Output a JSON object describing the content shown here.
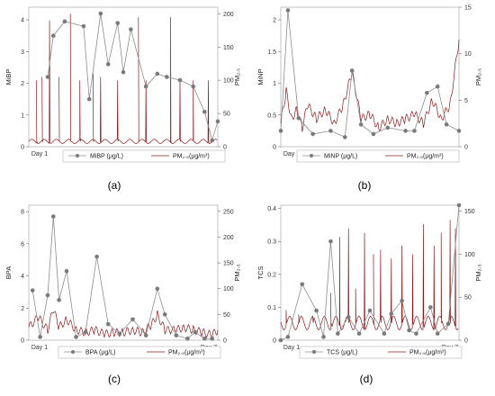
{
  "chart_data": [
    {
      "type": "line",
      "panel_label": "(a)",
      "x_ticks": [
        "Day 1",
        "Day 7"
      ],
      "ylabel_left": "MiBP",
      "ylabel_right": "PM₂.₅",
      "ylim_left": [
        0,
        4.4
      ],
      "yticks_left": [
        0,
        1,
        2,
        3,
        4
      ],
      "ylim_right": [
        0,
        210
      ],
      "yticks_right": [
        0,
        50,
        100,
        150,
        200
      ],
      "legend": [
        "MiBP (μg/L)",
        "PM₂.₅(μg/m³)"
      ],
      "series": [
        {
          "name": "MiBP (μg/L)",
          "axis": "left",
          "style": "connected-markers",
          "points": [
            [
              0.1,
              2.2
            ],
            [
              0.13,
              3.5
            ],
            [
              0.19,
              3.95
            ],
            [
              0.29,
              3.8
            ],
            [
              0.32,
              1.5
            ],
            [
              0.38,
              4.2
            ],
            [
              0.42,
              2.6
            ],
            [
              0.47,
              3.9
            ],
            [
              0.5,
              2.35
            ],
            [
              0.54,
              3.7
            ],
            [
              0.62,
              1.9
            ],
            [
              0.68,
              2.3
            ],
            [
              0.73,
              2.2
            ],
            [
              0.8,
              2.1
            ],
            [
              0.87,
              1.9
            ],
            [
              0.93,
              1.1
            ],
            [
              0.97,
              0.2
            ],
            [
              1.0,
              0.8
            ]
          ]
        },
        {
          "name": "PM₂.₅(μg/m³)",
          "axis": "right",
          "style": "spiky-line",
          "baseline": 8,
          "spikes": [
            [
              0.04,
              100
            ],
            [
              0.07,
              105
            ],
            [
              0.11,
              190
            ],
            [
              0.16,
              105
            ],
            [
              0.22,
              200
            ],
            [
              0.27,
              100
            ],
            [
              0.34,
              110
            ],
            [
              0.38,
              105
            ],
            [
              0.47,
              100
            ],
            [
              0.58,
              195
            ],
            [
              0.62,
              100
            ],
            [
              0.75,
              195
            ],
            [
              0.8,
              100
            ],
            [
              0.87,
              100
            ],
            [
              0.95,
              100
            ]
          ]
        }
      ]
    },
    {
      "type": "line",
      "panel_label": "(b)",
      "x_ticks": [
        "Day 1",
        "Day 7"
      ],
      "ylabel_left": "MiNP",
      "ylabel_right": "PM₂.₅",
      "ylim_left": [
        0,
        2.2
      ],
      "yticks_left": [
        0,
        0.5,
        1,
        1.5,
        2
      ],
      "ylim_right": [
        0,
        15
      ],
      "yticks_right": [
        0,
        5,
        10,
        15
      ],
      "legend": [
        "MiNP (μg/L)",
        "PM₂.₅(μg/m³)"
      ],
      "series": [
        {
          "name": "MiNP (μg/L)",
          "axis": "left",
          "style": "connected-markers",
          "points": [
            [
              0.0,
              0.25
            ],
            [
              0.04,
              2.15
            ],
            [
              0.1,
              0.45
            ],
            [
              0.18,
              0.2
            ],
            [
              0.28,
              0.25
            ],
            [
              0.36,
              0.15
            ],
            [
              0.4,
              1.2
            ],
            [
              0.45,
              0.35
            ],
            [
              0.52,
              0.2
            ],
            [
              0.6,
              0.3
            ],
            [
              0.7,
              0.25
            ],
            [
              0.75,
              0.25
            ],
            [
              0.82,
              0.85
            ],
            [
              0.88,
              0.95
            ],
            [
              0.93,
              0.35
            ],
            [
              1.0,
              0.25
            ]
          ]
        },
        {
          "name": "PM₂.₅(μg/m³)",
          "axis": "right",
          "style": "noisy-line",
          "points": [
            [
              0.0,
              2.5
            ],
            [
              0.03,
              6
            ],
            [
              0.06,
              3
            ],
            [
              0.09,
              4
            ],
            [
              0.12,
              2
            ],
            [
              0.15,
              4.5
            ],
            [
              0.2,
              3
            ],
            [
              0.25,
              4
            ],
            [
              0.3,
              2.5
            ],
            [
              0.35,
              4.5
            ],
            [
              0.4,
              8
            ],
            [
              0.45,
              3
            ],
            [
              0.5,
              3.5
            ],
            [
              0.55,
              2
            ],
            [
              0.6,
              3
            ],
            [
              0.65,
              2.5
            ],
            [
              0.7,
              3
            ],
            [
              0.75,
              3.5
            ],
            [
              0.8,
              2.5
            ],
            [
              0.85,
              5
            ],
            [
              0.9,
              3
            ],
            [
              0.95,
              4.5
            ],
            [
              1.0,
              11.5
            ]
          ]
        }
      ]
    },
    {
      "type": "line",
      "panel_label": "(c)",
      "x_ticks": [
        "Day 1",
        "Day 7"
      ],
      "ylabel_left": "BPA",
      "ylabel_right": "PM₂.₅",
      "ylim_left": [
        0,
        8.4
      ],
      "yticks_left": [
        0,
        2,
        4,
        6,
        8
      ],
      "ylim_right": [
        0,
        262
      ],
      "yticks_right": [
        0,
        50,
        100,
        150,
        200,
        250
      ],
      "legend": [
        "BPA (μg/L)",
        "PM₂.₅(μg/m³)"
      ],
      "series": [
        {
          "name": "BPA (μg/L)",
          "axis": "left",
          "style": "connected-markers",
          "points": [
            [
              0.02,
              3.1
            ],
            [
              0.06,
              0.2
            ],
            [
              0.1,
              2.8
            ],
            [
              0.13,
              7.7
            ],
            [
              0.16,
              2.5
            ],
            [
              0.2,
              4.3
            ],
            [
              0.25,
              0.2
            ],
            [
              0.3,
              0.5
            ],
            [
              0.36,
              5.2
            ],
            [
              0.42,
              1.0
            ],
            [
              0.48,
              0.4
            ],
            [
              0.55,
              1.3
            ],
            [
              0.62,
              0.3
            ],
            [
              0.68,
              3.2
            ],
            [
              0.72,
              1.6
            ],
            [
              0.78,
              0.3
            ],
            [
              0.84,
              0.1
            ],
            [
              0.88,
              0.5
            ],
            [
              0.93,
              0.1
            ],
            [
              0.97,
              0.1
            ]
          ]
        },
        {
          "name": "PM₂.₅(μg/m³)",
          "axis": "right",
          "style": "noisy-line",
          "points": [
            [
              0.0,
              25
            ],
            [
              0.05,
              45
            ],
            [
              0.1,
              20
            ],
            [
              0.13,
              60
            ],
            [
              0.16,
              25
            ],
            [
              0.2,
              40
            ],
            [
              0.25,
              20
            ],
            [
              0.3,
              15
            ],
            [
              0.35,
              20
            ],
            [
              0.4,
              12
            ],
            [
              0.45,
              15
            ],
            [
              0.5,
              15
            ],
            [
              0.55,
              20
            ],
            [
              0.6,
              15
            ],
            [
              0.65,
              30
            ],
            [
              0.68,
              50
            ],
            [
              0.72,
              20
            ],
            [
              0.78,
              20
            ],
            [
              0.82,
              25
            ],
            [
              0.87,
              20
            ],
            [
              0.92,
              15
            ],
            [
              0.97,
              10
            ],
            [
              1.0,
              20
            ]
          ]
        }
      ]
    },
    {
      "type": "line",
      "panel_label": "(d)",
      "x_ticks": [
        "Day 1",
        "Day 7"
      ],
      "ylabel_left": "TCS",
      "ylabel_right": "PM₂.₅",
      "ylim_left": [
        0,
        0.41
      ],
      "yticks_left": [
        0,
        0.1,
        0.2,
        0.3,
        0.4
      ],
      "ylim_right": [
        0,
        157
      ],
      "yticks_right": [
        0,
        50,
        100,
        150
      ],
      "legend": [
        "TCS (μg/L)",
        "PM₂.₅(μg/m³)"
      ],
      "series": [
        {
          "name": "TCS (μg/L)",
          "axis": "left",
          "style": "connected-markers",
          "points": [
            [
              0.0,
              0
            ],
            [
              0.04,
              0.01
            ],
            [
              0.12,
              0.17
            ],
            [
              0.2,
              0.09
            ],
            [
              0.24,
              0.01
            ],
            [
              0.28,
              0.3
            ],
            [
              0.32,
              0.02
            ],
            [
              0.38,
              0.07
            ],
            [
              0.44,
              0.02
            ],
            [
              0.5,
              0.09
            ],
            [
              0.58,
              0.02
            ],
            [
              0.62,
              0.08
            ],
            [
              0.68,
              0.12
            ],
            [
              0.72,
              0.03
            ],
            [
              0.76,
              0.02
            ],
            [
              0.84,
              0.1
            ],
            [
              0.88,
              0.02
            ],
            [
              0.94,
              0.05
            ],
            [
              1.0,
              0.41
            ]
          ]
        },
        {
          "name": "PM₂.₅(μg/m³)",
          "axis": "right",
          "style": "spiky-line",
          "baseline": 20,
          "spikes": [
            [
              0.03,
              35
            ],
            [
              0.1,
              30
            ],
            [
              0.18,
              25
            ],
            [
              0.28,
              55
            ],
            [
              0.33,
              120
            ],
            [
              0.38,
              130
            ],
            [
              0.42,
              60
            ],
            [
              0.47,
              125
            ],
            [
              0.52,
              100
            ],
            [
              0.56,
              105
            ],
            [
              0.62,
              95
            ],
            [
              0.68,
              110
            ],
            [
              0.74,
              100
            ],
            [
              0.8,
              135
            ],
            [
              0.86,
              110
            ],
            [
              0.9,
              125
            ],
            [
              0.95,
              140
            ],
            [
              0.98,
              130
            ]
          ]
        }
      ]
    }
  ]
}
